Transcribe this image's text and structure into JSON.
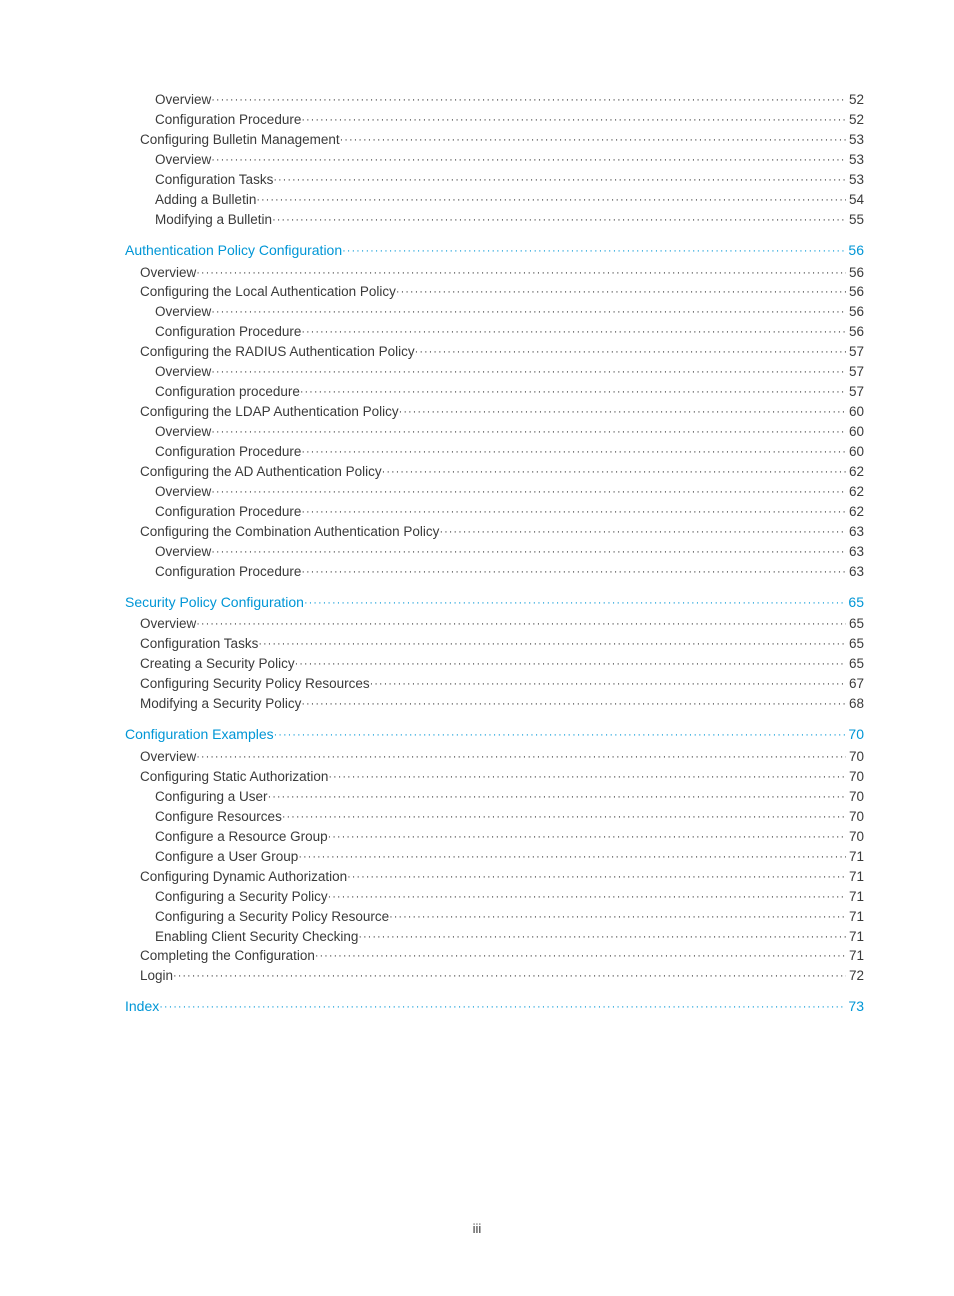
{
  "pageNumber": "iii",
  "entries": [
    {
      "label": "Overview",
      "page": "52",
      "level": 3,
      "section": false
    },
    {
      "label": "Configuration Procedure",
      "page": "52",
      "level": 3,
      "section": false
    },
    {
      "label": "Configuring Bulletin Management",
      "page": "53",
      "level": 2,
      "section": false
    },
    {
      "label": "Overview",
      "page": "53",
      "level": 3,
      "section": false
    },
    {
      "label": "Configuration Tasks",
      "page": "53",
      "level": 3,
      "section": false
    },
    {
      "label": "Adding a Bulletin",
      "page": "54",
      "level": 3,
      "section": false
    },
    {
      "label": "Modifying a Bulletin",
      "page": "55",
      "level": 3,
      "section": false
    },
    {
      "label": "Authentication Policy Configuration",
      "page": "56",
      "level": 1,
      "section": true
    },
    {
      "label": "Overview",
      "page": "56",
      "level": 2,
      "section": false
    },
    {
      "label": "Configuring the Local Authentication Policy",
      "page": "56",
      "level": 2,
      "section": false
    },
    {
      "label": "Overview",
      "page": "56",
      "level": 3,
      "section": false
    },
    {
      "label": "Configuration Procedure",
      "page": "56",
      "level": 3,
      "section": false
    },
    {
      "label": "Configuring the RADIUS Authentication Policy",
      "page": "57",
      "level": 2,
      "section": false
    },
    {
      "label": "Overview",
      "page": "57",
      "level": 3,
      "section": false
    },
    {
      "label": "Configuration procedure",
      "page": "57",
      "level": 3,
      "section": false
    },
    {
      "label": "Configuring the LDAP Authentication Policy",
      "page": "60",
      "level": 2,
      "section": false
    },
    {
      "label": "Overview",
      "page": "60",
      "level": 3,
      "section": false
    },
    {
      "label": "Configuration Procedure",
      "page": "60",
      "level": 3,
      "section": false
    },
    {
      "label": "Configuring the AD Authentication Policy",
      "page": "62",
      "level": 2,
      "section": false
    },
    {
      "label": "Overview",
      "page": "62",
      "level": 3,
      "section": false
    },
    {
      "label": "Configuration Procedure",
      "page": "62",
      "level": 3,
      "section": false
    },
    {
      "label": "Configuring the Combination Authentication Policy",
      "page": "63",
      "level": 2,
      "section": false
    },
    {
      "label": "Overview",
      "page": "63",
      "level": 3,
      "section": false
    },
    {
      "label": "Configuration Procedure",
      "page": "63",
      "level": 3,
      "section": false
    },
    {
      "label": "Security Policy Configuration",
      "page": "65",
      "level": 1,
      "section": true
    },
    {
      "label": "Overview",
      "page": "65",
      "level": 2,
      "section": false
    },
    {
      "label": "Configuration Tasks",
      "page": "65",
      "level": 2,
      "section": false
    },
    {
      "label": "Creating a Security Policy",
      "page": "65",
      "level": 2,
      "section": false
    },
    {
      "label": "Configuring Security Policy Resources",
      "page": "67",
      "level": 2,
      "section": false
    },
    {
      "label": "Modifying a Security Policy",
      "page": "68",
      "level": 2,
      "section": false
    },
    {
      "label": "Configuration Examples",
      "page": "70",
      "level": 1,
      "section": true
    },
    {
      "label": "Overview",
      "page": "70",
      "level": 2,
      "section": false
    },
    {
      "label": "Configuring Static Authorization",
      "page": "70",
      "level": 2,
      "section": false
    },
    {
      "label": "Configuring a User",
      "page": "70",
      "level": 3,
      "section": false
    },
    {
      "label": "Configure Resources",
      "page": "70",
      "level": 3,
      "section": false
    },
    {
      "label": "Configure a Resource Group",
      "page": "70",
      "level": 3,
      "section": false
    },
    {
      "label": "Configure a User Group",
      "page": "71",
      "level": 3,
      "section": false
    },
    {
      "label": "Configuring Dynamic Authorization",
      "page": "71",
      "level": 2,
      "section": false
    },
    {
      "label": "Configuring a Security Policy",
      "page": "71",
      "level": 3,
      "section": false
    },
    {
      "label": "Configuring a Security Policy Resource",
      "page": "71",
      "level": 3,
      "section": false
    },
    {
      "label": "Enabling Client Security Checking",
      "page": "71",
      "level": 3,
      "section": false
    },
    {
      "label": "Completing the Configuration",
      "page": "71",
      "level": 2,
      "section": false
    },
    {
      "label": "Login",
      "page": "72",
      "level": 2,
      "section": false
    },
    {
      "label": "Index",
      "page": "73",
      "level": 1,
      "section": true
    }
  ],
  "colors": {
    "link": "#0096d6",
    "text": "#3a3a3a",
    "background": "#ffffff"
  },
  "fontSizes": {
    "section": 14,
    "entry": 13.5,
    "pageNumber": 13
  }
}
